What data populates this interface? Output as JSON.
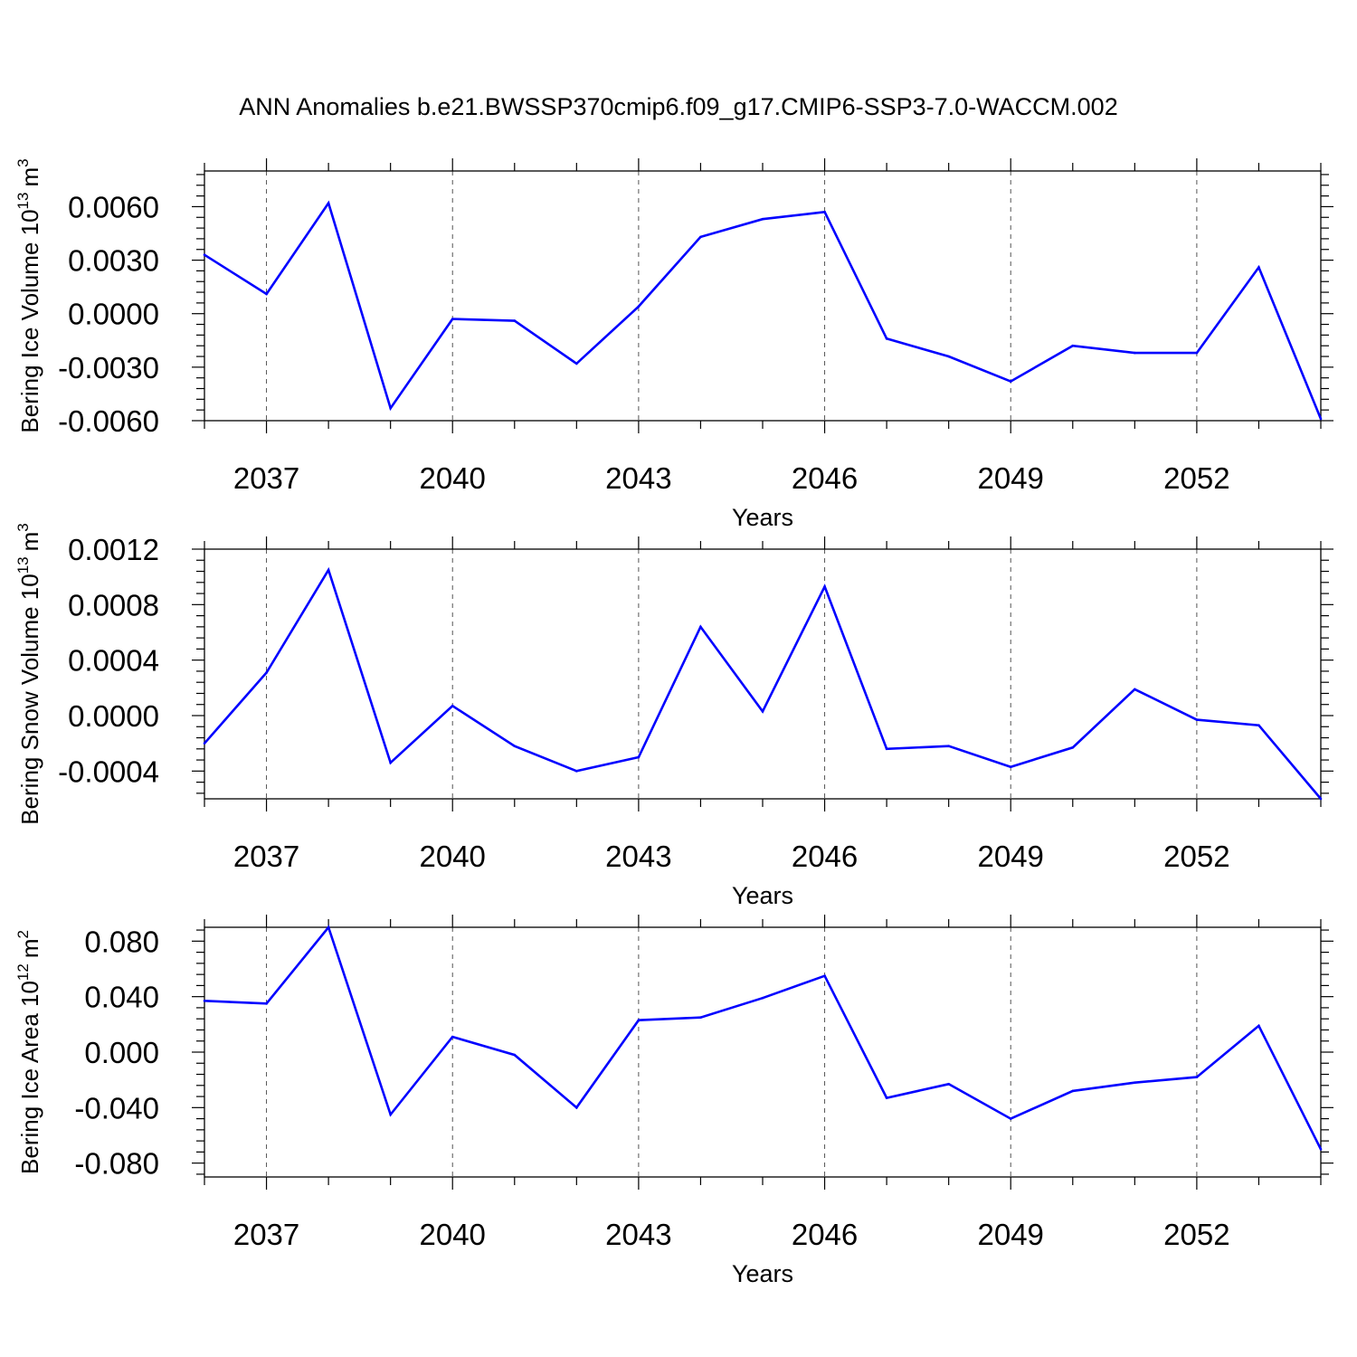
{
  "title": "ANN Anomalies b.e21.BWSSP370cmip6.f09_g17.CMIP6-SSP3-7.0-WACCM.002",
  "line_color": "#0000ff",
  "chart_data": [
    {
      "type": "line",
      "xlabel": "Years",
      "ylabel_main": "Bering Ice Volume 10",
      "ylabel_exp": "13",
      "ylabel_unit": "m",
      "ylabel_unit_exp": "3",
      "xlim": [
        2036,
        2054
      ],
      "ylim": [
        -0.006,
        0.008
      ],
      "grid": "vertical dashed at major x ticks",
      "x_ticks": [
        2037,
        2040,
        2043,
        2046,
        2049,
        2052
      ],
      "x_tick_labels": [
        "2037",
        "2040",
        "2043",
        "2046",
        "2049",
        "2052"
      ],
      "y_ticks": [
        -0.006,
        -0.003,
        0.0,
        0.003,
        0.006
      ],
      "y_tick_labels": [
        "-0.0060",
        "-0.0030",
        "0.0000",
        "0.0030",
        "0.0060"
      ],
      "x": [
        2036,
        2037,
        2038,
        2039,
        2040,
        2041,
        2042,
        2043,
        2044,
        2045,
        2046,
        2047,
        2048,
        2049,
        2050,
        2051,
        2052,
        2053,
        2054
      ],
      "y": [
        0.0033,
        0.0011,
        0.0062,
        -0.0053,
        -0.0003,
        -0.0004,
        -0.0028,
        0.0004,
        0.0043,
        0.0053,
        0.0057,
        -0.0014,
        -0.0024,
        -0.0038,
        -0.0018,
        -0.0022,
        -0.0022,
        0.0026,
        -0.0059
      ]
    },
    {
      "type": "line",
      "xlabel": "Years",
      "ylabel_main": "Bering Snow Volume 10",
      "ylabel_exp": "13",
      "ylabel_unit": "m",
      "ylabel_unit_exp": "3",
      "xlim": [
        2036,
        2054
      ],
      "ylim": [
        -0.0006,
        0.0012
      ],
      "grid": "vertical dashed at major x ticks",
      "x_ticks": [
        2037,
        2040,
        2043,
        2046,
        2049,
        2052
      ],
      "x_tick_labels": [
        "2037",
        "2040",
        "2043",
        "2046",
        "2049",
        "2052"
      ],
      "y_ticks": [
        -0.0004,
        0.0,
        0.0004,
        0.0008,
        0.0012
      ],
      "y_tick_labels": [
        "-0.0004",
        "0.0000",
        "0.0004",
        "0.0008",
        "0.0012"
      ],
      "x": [
        2036,
        2037,
        2038,
        2039,
        2040,
        2041,
        2042,
        2043,
        2044,
        2045,
        2046,
        2047,
        2048,
        2049,
        2050,
        2051,
        2052,
        2053,
        2054
      ],
      "y": [
        -0.0002,
        0.00031,
        0.00105,
        -0.00034,
        7e-05,
        -0.00022,
        -0.0004,
        -0.0003,
        0.00064,
        3e-05,
        0.00093,
        -0.00024,
        -0.00022,
        -0.00037,
        -0.00023,
        0.00019,
        -3e-05,
        -7e-05,
        -0.0006
      ]
    },
    {
      "type": "line",
      "xlabel": "Years",
      "ylabel_main": "Bering Ice Area 10",
      "ylabel_exp": "12",
      "ylabel_unit": "m",
      "ylabel_unit_exp": "2",
      "xlim": [
        2036,
        2054
      ],
      "ylim": [
        -0.09,
        0.09
      ],
      "grid": "vertical dashed at major x ticks",
      "x_ticks": [
        2037,
        2040,
        2043,
        2046,
        2049,
        2052
      ],
      "x_tick_labels": [
        "2037",
        "2040",
        "2043",
        "2046",
        "2049",
        "2052"
      ],
      "y_ticks": [
        -0.08,
        -0.04,
        0.0,
        0.04,
        0.08
      ],
      "y_tick_labels": [
        "-0.080",
        "-0.040",
        "0.000",
        "0.040",
        "0.080"
      ],
      "x": [
        2036,
        2037,
        2038,
        2039,
        2040,
        2041,
        2042,
        2043,
        2044,
        2045,
        2046,
        2047,
        2048,
        2049,
        2050,
        2051,
        2052,
        2053,
        2054
      ],
      "y": [
        0.037,
        0.035,
        0.09,
        -0.045,
        0.011,
        -0.002,
        -0.04,
        0.023,
        0.025,
        0.039,
        0.055,
        -0.033,
        -0.023,
        -0.048,
        -0.028,
        -0.022,
        -0.018,
        0.019,
        -0.07
      ]
    }
  ]
}
